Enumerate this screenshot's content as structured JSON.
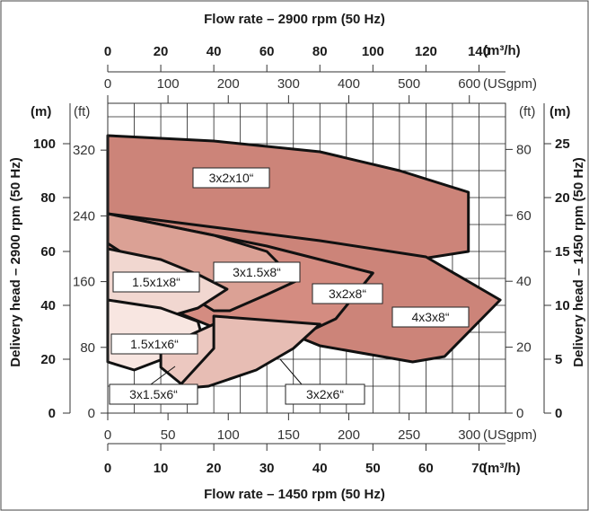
{
  "chart_data": {
    "type": "area",
    "title_top": "Flow rate – 2900 rpm (50 Hz)",
    "title_bottom": "Flow rate – 1450 rpm (50 Hz)",
    "axis_top_m3h": {
      "unit": "(m³/h)",
      "ticks": [
        0,
        20,
        40,
        60,
        80,
        100,
        120,
        140
      ],
      "range": [
        0,
        150
      ]
    },
    "axis_top_gpm": {
      "unit": "(USgpm)",
      "ticks": [
        0,
        100,
        200,
        300,
        400,
        500,
        600
      ],
      "range": [
        0,
        660
      ]
    },
    "axis_bottom_gpm": {
      "unit": "(USgpm)",
      "ticks": [
        0,
        50,
        100,
        150,
        200,
        250,
        300
      ],
      "range": [
        0,
        330
      ]
    },
    "axis_bottom_m3h": {
      "unit": "(m³/h)",
      "ticks": [
        0,
        10,
        20,
        30,
        40,
        50,
        60,
        70
      ],
      "range": [
        0,
        75
      ]
    },
    "axis_left_m": {
      "unit": "(m)",
      "ticks": [
        0,
        20,
        40,
        60,
        80,
        100
      ],
      "range": [
        0,
        115
      ],
      "label": "Delivery head – 2900 rpm (50 Hz)"
    },
    "axis_left_ft": {
      "unit": "(ft)",
      "ticks": [
        0,
        80,
        160,
        240,
        320
      ],
      "range": [
        0,
        377
      ]
    },
    "axis_right_ft": {
      "unit": "(ft)",
      "ticks": [
        0,
        20,
        40,
        60,
        80
      ],
      "range": [
        0,
        94
      ]
    },
    "axis_right_m": {
      "unit": "(m)",
      "ticks": [
        0,
        5,
        10,
        15,
        20,
        25
      ],
      "range": [
        0,
        28.75
      ],
      "label": "Delivery head – 1450 rpm (50 Hz)"
    },
    "grid": true,
    "series": [
      {
        "name": "3x2x10“",
        "color": "#cc8479",
        "points": [
          [
            0,
            103
          ],
          [
            40,
            101
          ],
          [
            80,
            97
          ],
          [
            110,
            90
          ],
          [
            136,
            82
          ],
          [
            136,
            60
          ],
          [
            110,
            56
          ],
          [
            80,
            57
          ],
          [
            40,
            66
          ],
          [
            0,
            74
          ]
        ]
      },
      {
        "name": "4x3x8“",
        "color": "#cc8479",
        "points": [
          [
            0,
            74
          ],
          [
            40,
            69
          ],
          [
            80,
            64
          ],
          [
            120,
            58
          ],
          [
            148,
            42
          ],
          [
            127,
            21
          ],
          [
            115,
            19
          ],
          [
            80,
            25
          ],
          [
            40,
            41
          ],
          [
            0,
            53
          ]
        ]
      },
      {
        "name": "3x2x8“",
        "color": "#d48c81",
        "points": [
          [
            0,
            74
          ],
          [
            40,
            66
          ],
          [
            60,
            62
          ],
          [
            80,
            57
          ],
          [
            100,
            52
          ],
          [
            86,
            35
          ],
          [
            60,
            23
          ],
          [
            60,
            21
          ],
          [
            42,
            31
          ],
          [
            0,
            48
          ]
        ]
      },
      {
        "name": "3x1.5x8“",
        "color": "#dba195",
        "points": [
          [
            0,
            74
          ],
          [
            40,
            66
          ],
          [
            60,
            60
          ],
          [
            71,
            49
          ],
          [
            60,
            44
          ],
          [
            46,
            38
          ],
          [
            40,
            38
          ],
          [
            30,
            44
          ],
          [
            0,
            63
          ]
        ]
      },
      {
        "name": "1.5x1x8“",
        "color": "#f1d7d0",
        "points": [
          [
            0,
            61
          ],
          [
            20,
            57
          ],
          [
            35,
            51
          ],
          [
            45,
            46
          ],
          [
            34,
            39
          ],
          [
            20,
            35
          ],
          [
            0,
            30
          ]
        ]
      },
      {
        "name": "1.5x1x6“",
        "color": "#f8e6e1",
        "points": [
          [
            0,
            42
          ],
          [
            20,
            39
          ],
          [
            34,
            34
          ],
          [
            36,
            27
          ],
          [
            26,
            22
          ],
          [
            10,
            16
          ],
          [
            0,
            19
          ]
        ]
      },
      {
        "name": "3x1.5x6“",
        "color": "#ecc8c0",
        "points": [
          [
            20,
            24
          ],
          [
            40,
            33
          ],
          [
            66,
            31
          ],
          [
            64,
            26
          ],
          [
            46,
            13
          ],
          [
            30,
            9
          ],
          [
            20,
            17
          ]
        ]
      },
      {
        "name": "3x2x6“",
        "color": "#e7bdb4",
        "points": [
          [
            40,
            36
          ],
          [
            80,
            33
          ],
          [
            70,
            24
          ],
          [
            56,
            16
          ],
          [
            38,
            10
          ],
          [
            26,
            9
          ],
          [
            40,
            24
          ]
        ]
      }
    ],
    "labels": [
      {
        "text": "3x2x10“",
        "series": "3x2x10“"
      },
      {
        "text": "4x3x8“",
        "series": "4x3x8“"
      },
      {
        "text": "3x2x8“",
        "series": "3x2x8“"
      },
      {
        "text": "3x1.5x8“",
        "series": "3x1.5x8“"
      },
      {
        "text": "1.5x1x8“",
        "series": "1.5x1x8“"
      },
      {
        "text": "1.5x1x6“",
        "series": "1.5x1x6“"
      },
      {
        "text": "3x1.5x6“",
        "series": "3x1.5x6“"
      },
      {
        "text": "3x2x6“",
        "series": "3x2x6“"
      }
    ]
  }
}
